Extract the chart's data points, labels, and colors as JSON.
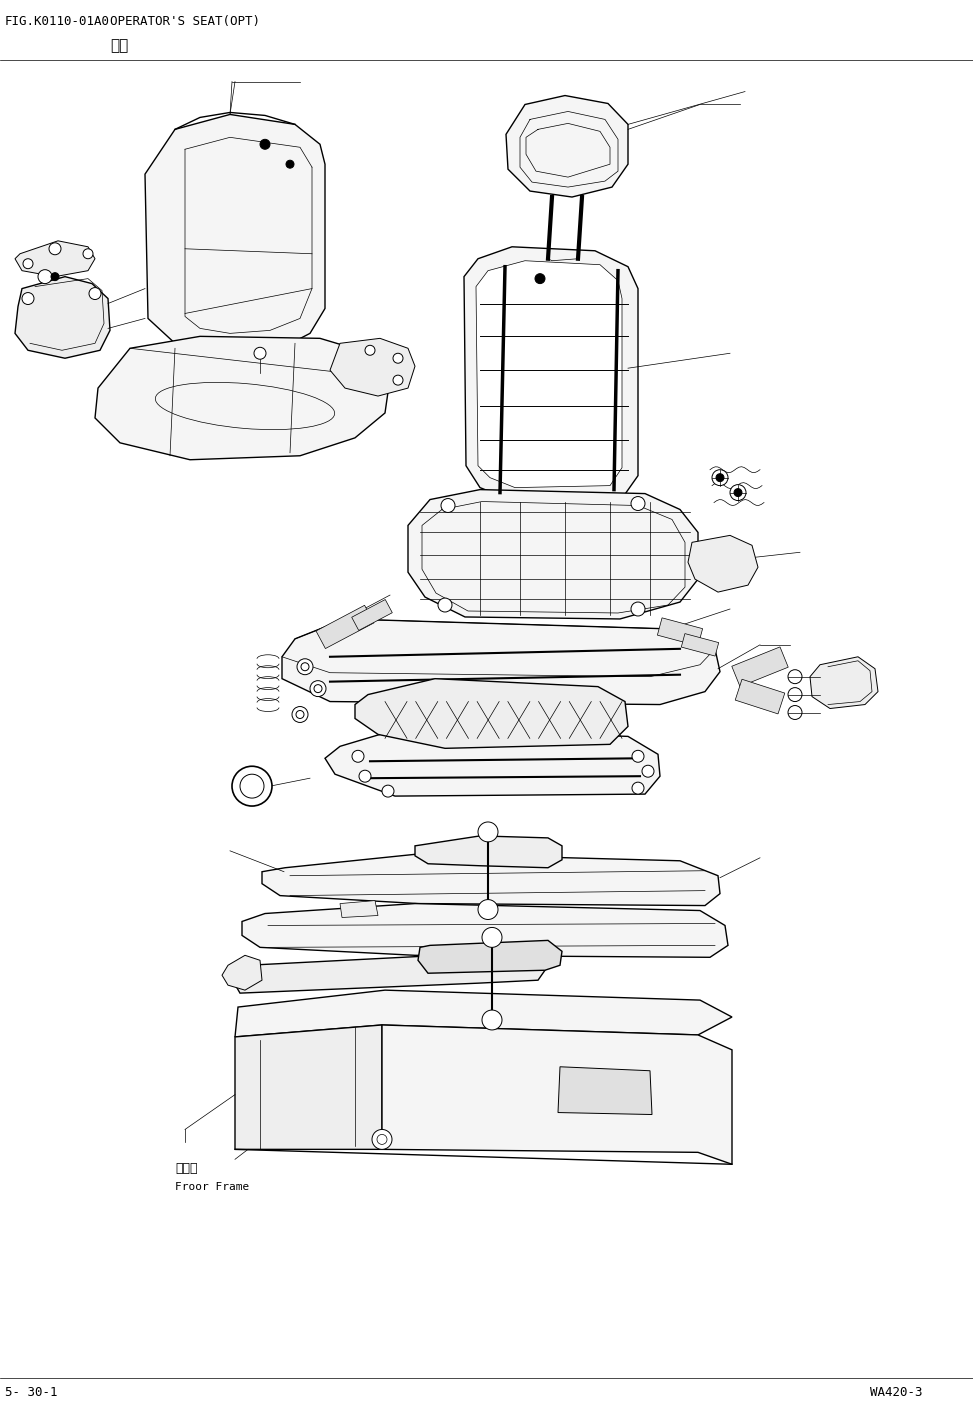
{
  "fig_number": "FIG.K0110-01A0",
  "title_en": "OPERATOR'S SEAT(OPT)",
  "title_cn": "座椰",
  "page_left": "5- 30-1",
  "page_right": "WA420-3",
  "floor_frame_cn": "地板架",
  "floor_frame_en": "Froor Frame",
  "bg_color": "#ffffff",
  "text_color": "#000000",
  "lw_main": 1.0,
  "lw_thin": 0.5,
  "lw_med": 0.7,
  "fill_light": "#f5f5f5",
  "fill_mid": "#eeeeee",
  "fill_dark": "#e0e0e0"
}
